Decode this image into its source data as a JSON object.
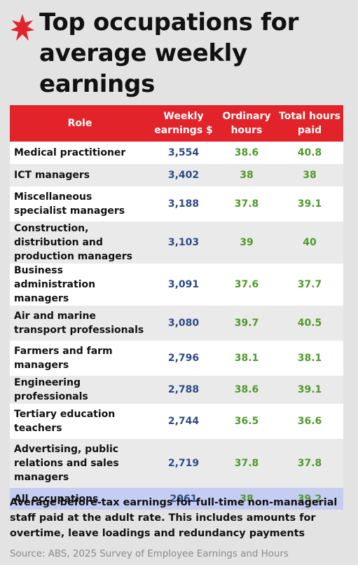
{
  "title": "Top occupations for average weekly earnings",
  "brand_color": "#e2232a",
  "columns": {
    "role": "Role",
    "weekly_earnings": "Weekly earnings $",
    "ordinary_hours": "Ordinary hours",
    "total_hours_paid": "Total hours paid"
  },
  "rows": [
    {
      "role": "Medical practitioner",
      "weekly": "3,554",
      "ordinary": "38.6",
      "total": "40.8"
    },
    {
      "role": "ICT managers",
      "weekly": "3,402",
      "ordinary": "38",
      "total": "38"
    },
    {
      "role": "Miscellaneous specialist managers",
      "weekly": "3,188",
      "ordinary": "37.8",
      "total": "39.1"
    },
    {
      "role": "Construction, distribution and production managers",
      "weekly": "3,103",
      "ordinary": "39",
      "total": "40"
    },
    {
      "role": "Business administration managers",
      "weekly": "3,091",
      "ordinary": "37.6",
      "total": "37.7"
    },
    {
      "role": "Air and marine transport professionals",
      "weekly": "3,080",
      "ordinary": "39.7",
      "total": "40.5"
    },
    {
      "role": "Farmers and farm managers",
      "weekly": "2,796",
      "ordinary": "38.1",
      "total": "38.1"
    },
    {
      "role": "Engineering professionals",
      "weekly": "2,788",
      "ordinary": "38.6",
      "total": "39.1"
    },
    {
      "role": "Tertiary education teachers",
      "weekly": "2,744",
      "ordinary": "36.5",
      "total": "36.6"
    },
    {
      "role": "Advertising, public relations and sales managers",
      "weekly": "2,719",
      "ordinary": "37.8",
      "total": "37.8"
    }
  ],
  "total_row": {
    "role": "All occupations",
    "weekly": "2061",
    "ordinary": "38",
    "total": "39.2"
  },
  "caption": "Average before-tax earnings for full-time non-managerial staff paid at the adult rate. This includes amounts for overtime, leave loadings and redundancy payments",
  "source": "Source: ABS, 2025 Survey of Employee Earnings and Hours",
  "logo_icon": "sbs-logo-icon"
}
